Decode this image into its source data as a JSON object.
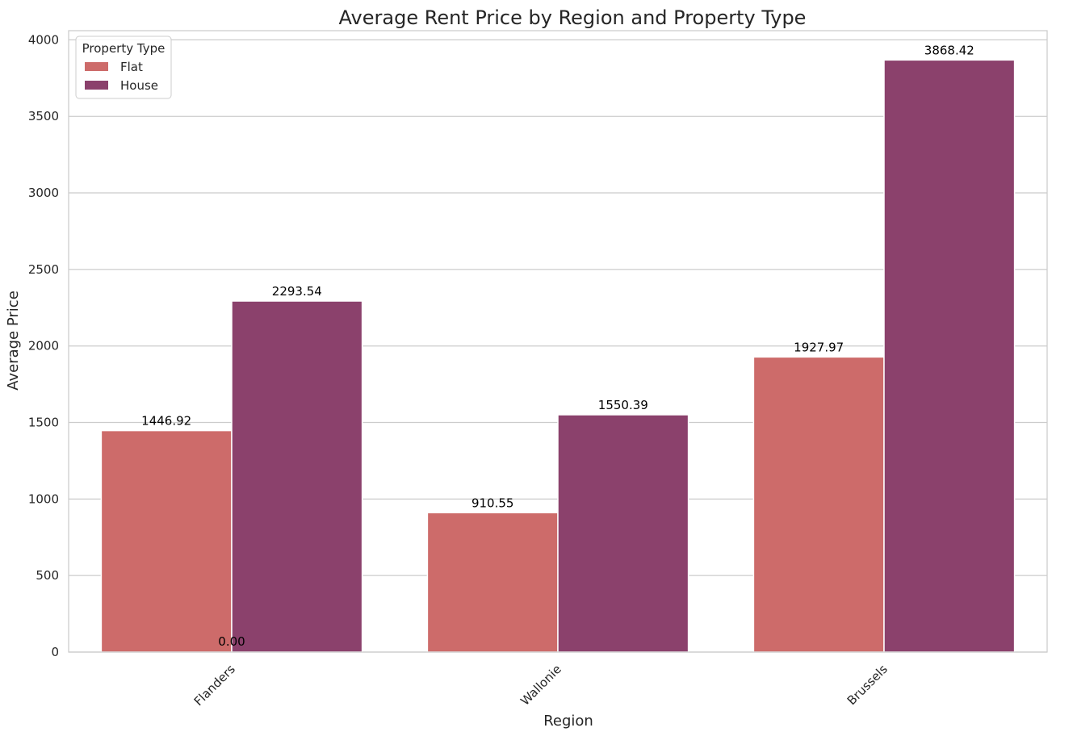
{
  "chart_data": {
    "type": "bar",
    "title": "Average Rent Price by Region and Property Type",
    "xlabel": "Region",
    "ylabel": "Average Price",
    "categories": [
      "Flanders",
      "Wallonie",
      "Brussels"
    ],
    "series": [
      {
        "name": "Flat",
        "color": "#cd6b6a",
        "values": [
          1446.92,
          910.55,
          1927.97
        ],
        "labels": [
          "1446.92",
          "910.55",
          "1927.97"
        ]
      },
      {
        "name": "House",
        "color": "#8b416c",
        "values": [
          2293.54,
          1550.39,
          3868.42
        ],
        "labels": [
          "2293.54",
          "1550.39",
          "3868.42"
        ]
      }
    ],
    "extra_annotation": {
      "text": "0.00",
      "value": 0
    },
    "ylim": [
      0,
      4060
    ],
    "yticks": [
      0,
      500,
      1000,
      1500,
      2000,
      2500,
      3000,
      3500,
      4000
    ],
    "ytick_labels": [
      "0",
      "500",
      "1000",
      "1500",
      "2000",
      "2500",
      "3000",
      "3500",
      "4000"
    ],
    "legend": {
      "title": "Property Type",
      "placement": "top-left"
    },
    "grid": "horizontal",
    "x_tick_rotation": -45,
    "colors": {
      "grid": "#cccccc",
      "spine": "#cccccc",
      "text": "#262626",
      "data_label": "#000000"
    }
  }
}
